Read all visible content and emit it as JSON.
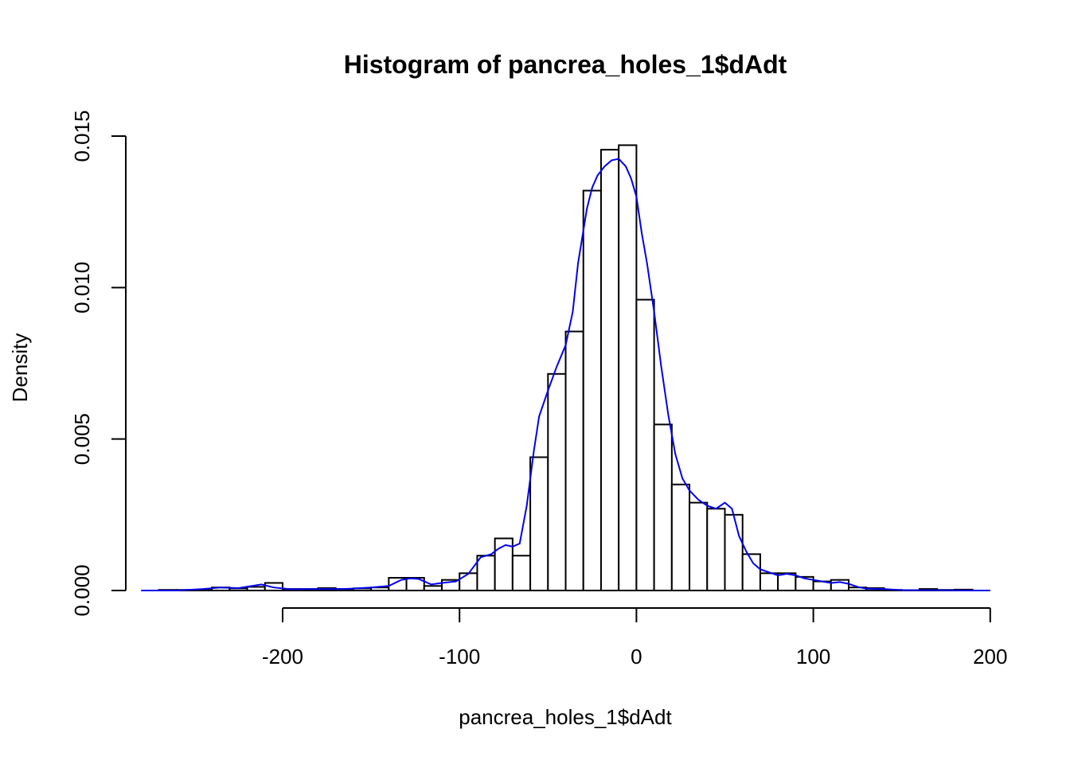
{
  "chart_data": {
    "type": "bar",
    "title": "Histogram of pancrea_holes_1$dAdt",
    "xlabel": "pancrea_holes_1$dAdt",
    "ylabel": "Density",
    "xlim": [
      -280,
      200
    ],
    "ylim": [
      0,
      0.015
    ],
    "x_ticks": [
      -200,
      -100,
      0,
      100,
      200
    ],
    "x_tick_labels": [
      "-200",
      "-100",
      "0",
      "100",
      "200"
    ],
    "y_ticks": [
      0,
      0.005,
      0.01,
      0.015
    ],
    "y_tick_labels": [
      "0.000",
      "0.005",
      "0.010",
      "0.015"
    ],
    "bin_width": 10,
    "bins": [
      {
        "start": -270,
        "end": -260,
        "density": 2e-05
      },
      {
        "start": -260,
        "end": -250,
        "density": 2e-05
      },
      {
        "start": -250,
        "end": -240,
        "density": 2e-05
      },
      {
        "start": -240,
        "end": -230,
        "density": 0.0001
      },
      {
        "start": -230,
        "end": -220,
        "density": 7e-05
      },
      {
        "start": -220,
        "end": -210,
        "density": 0.00012
      },
      {
        "start": -210,
        "end": -200,
        "density": 0.00025
      },
      {
        "start": -200,
        "end": -190,
        "density": 5e-05
      },
      {
        "start": -190,
        "end": -180,
        "density": 5e-05
      },
      {
        "start": -180,
        "end": -170,
        "density": 8e-05
      },
      {
        "start": -170,
        "end": -160,
        "density": 5e-05
      },
      {
        "start": -160,
        "end": -150,
        "density": 7e-05
      },
      {
        "start": -150,
        "end": -140,
        "density": 0.0001
      },
      {
        "start": -140,
        "end": -130,
        "density": 0.00042
      },
      {
        "start": -130,
        "end": -120,
        "density": 0.00042
      },
      {
        "start": -120,
        "end": -110,
        "density": 0.00015
      },
      {
        "start": -110,
        "end": -100,
        "density": 0.00035
      },
      {
        "start": -100,
        "end": -90,
        "density": 0.00057
      },
      {
        "start": -90,
        "end": -80,
        "density": 0.00115
      },
      {
        "start": -80,
        "end": -70,
        "density": 0.00172
      },
      {
        "start": -70,
        "end": -60,
        "density": 0.00115
      },
      {
        "start": -60,
        "end": -50,
        "density": 0.0044
      },
      {
        "start": -50,
        "end": -40,
        "density": 0.00715
      },
      {
        "start": -40,
        "end": -30,
        "density": 0.00855
      },
      {
        "start": -30,
        "end": -20,
        "density": 0.0132
      },
      {
        "start": -20,
        "end": -10,
        "density": 0.01455
      },
      {
        "start": -10,
        "end": 0,
        "density": 0.0147
      },
      {
        "start": 0,
        "end": 10,
        "density": 0.0096
      },
      {
        "start": 10,
        "end": 20,
        "density": 0.00548
      },
      {
        "start": 20,
        "end": 30,
        "density": 0.0035
      },
      {
        "start": 30,
        "end": 40,
        "density": 0.0029
      },
      {
        "start": 40,
        "end": 50,
        "density": 0.0027
      },
      {
        "start": 50,
        "end": 60,
        "density": 0.0025
      },
      {
        "start": 60,
        "end": 70,
        "density": 0.0012
      },
      {
        "start": 70,
        "end": 80,
        "density": 0.00057
      },
      {
        "start": 80,
        "end": 90,
        "density": 0.00057
      },
      {
        "start": 90,
        "end": 100,
        "density": 0.00045
      },
      {
        "start": 100,
        "end": 110,
        "density": 0.0003
      },
      {
        "start": 110,
        "end": 120,
        "density": 0.00035
      },
      {
        "start": 120,
        "end": 130,
        "density": 0.0001
      },
      {
        "start": 130,
        "end": 140,
        "density": 8e-05
      },
      {
        "start": 140,
        "end": 150,
        "density": 2e-05
      },
      {
        "start": 150,
        "end": 160,
        "density": 1e-05
      },
      {
        "start": 160,
        "end": 170,
        "density": 5e-05
      },
      {
        "start": 170,
        "end": 180,
        "density": 2e-05
      },
      {
        "start": 180,
        "end": 190,
        "density": 3e-05
      }
    ],
    "density_curve": {
      "color": "#0000ee",
      "x": [
        -280,
        -260,
        -245,
        -235,
        -225,
        -212,
        -205,
        -195,
        -180,
        -165,
        -150,
        -140,
        -133,
        -128,
        -123,
        -116,
        -110,
        -102,
        -95,
        -88,
        -82,
        -78,
        -74,
        -70,
        -66,
        -62,
        -58,
        -55,
        -50,
        -45,
        -40,
        -36,
        -33,
        -28,
        -25,
        -22,
        -18,
        -14,
        -10,
        -6,
        -3,
        0,
        3,
        6,
        10,
        14,
        18,
        22,
        26,
        30,
        35,
        40,
        45,
        50,
        54,
        58,
        62,
        66,
        70,
        75,
        80,
        85,
        90,
        95,
        100,
        105,
        110,
        115,
        120,
        125,
        130,
        140,
        150,
        170,
        190,
        200
      ],
      "y": [
        0.0,
        0.0,
        5e-05,
        0.0001,
        8e-05,
        0.0002,
        0.0001,
        4e-05,
        5e-05,
        5e-05,
        0.0001,
        0.00015,
        0.00035,
        0.0004,
        0.00038,
        0.0002,
        0.00025,
        0.0003,
        0.00055,
        0.0011,
        0.0012,
        0.00138,
        0.0015,
        0.00145,
        0.00155,
        0.0028,
        0.0046,
        0.00575,
        0.0066,
        0.0074,
        0.0081,
        0.0092,
        0.0108,
        0.0126,
        0.0133,
        0.0137,
        0.014,
        0.0142,
        0.01425,
        0.014,
        0.0136,
        0.013,
        0.0118,
        0.0108,
        0.0092,
        0.0074,
        0.0058,
        0.0045,
        0.0037,
        0.0033,
        0.003,
        0.0028,
        0.0027,
        0.0029,
        0.0027,
        0.0018,
        0.0013,
        0.0009,
        0.0007,
        0.0006,
        0.0005,
        0.00055,
        0.0005,
        0.0004,
        0.00035,
        0.0003,
        0.00025,
        0.00028,
        0.00022,
        0.00012,
        6e-05,
        5e-05,
        1e-05,
        1e-05,
        0.0,
        0.0
      ]
    }
  }
}
